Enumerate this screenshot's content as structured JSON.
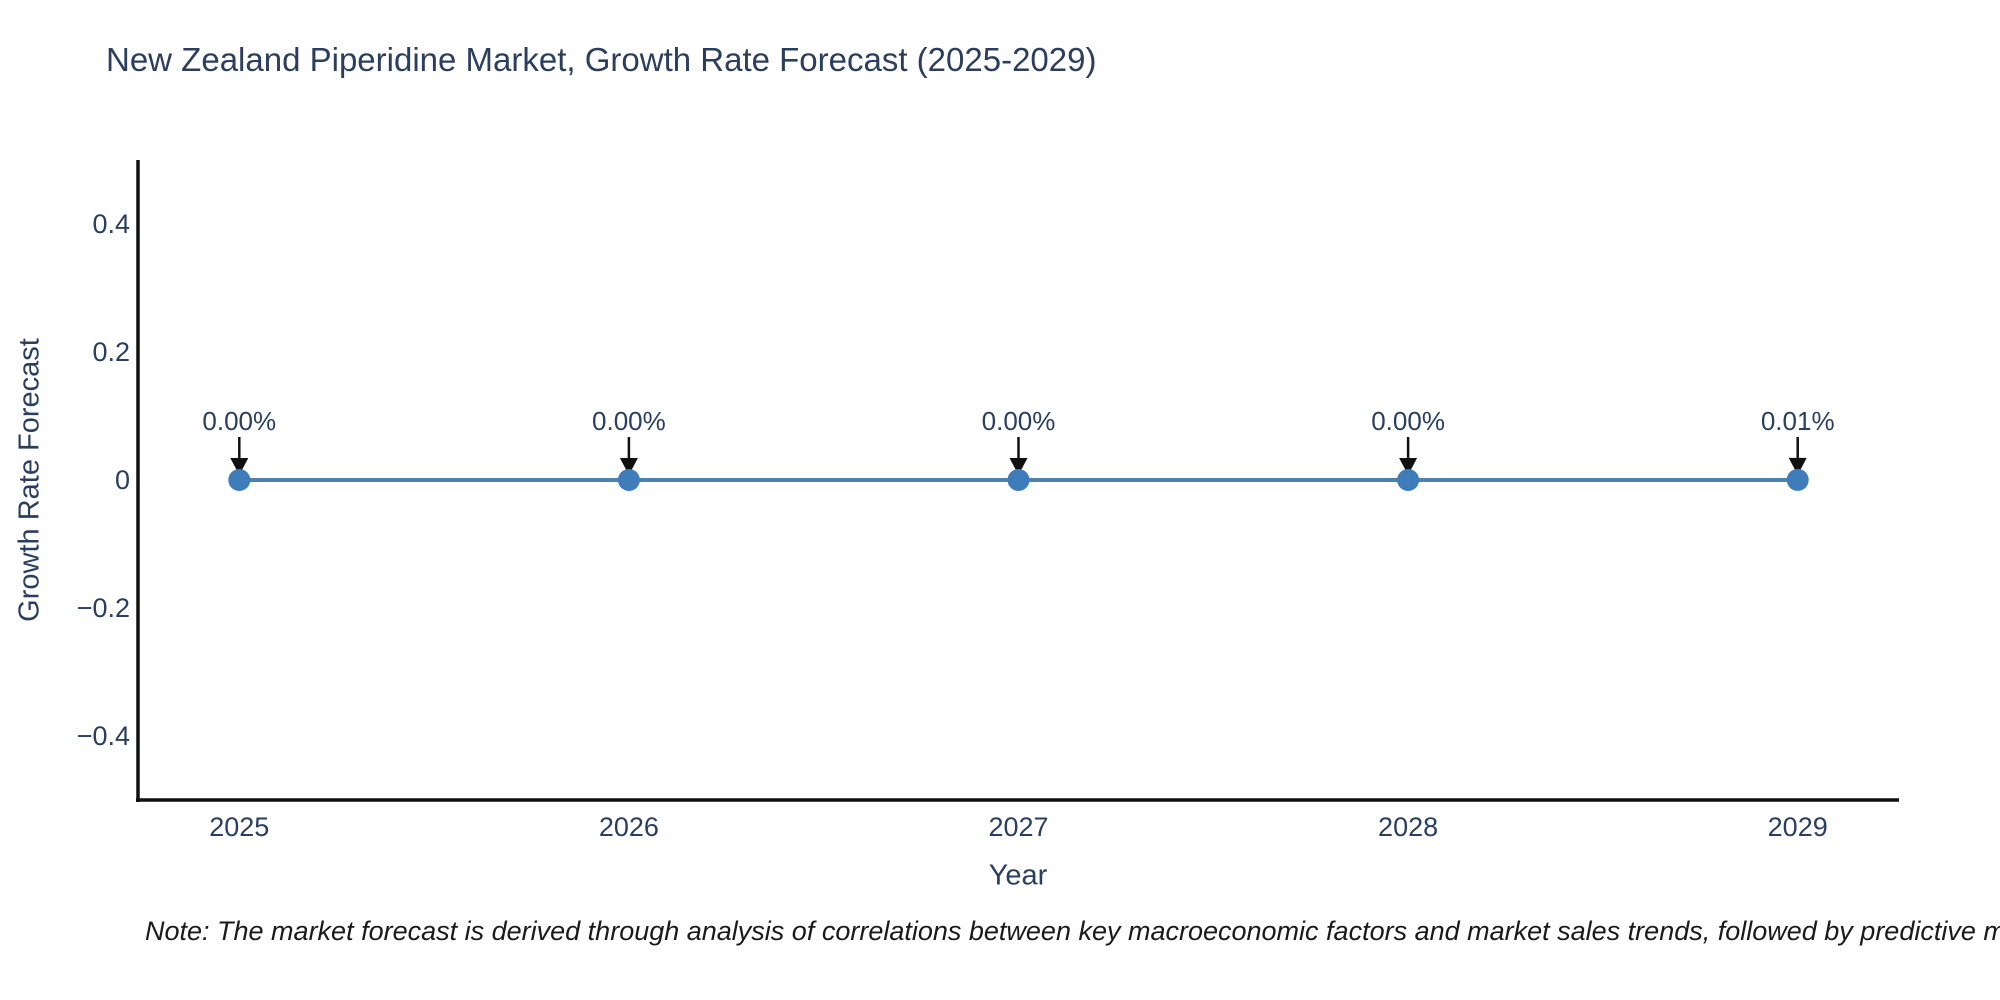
{
  "title": {
    "text": "New Zealand Piperidine Market, Growth Rate Forecast (2025-2029)"
  },
  "note": {
    "text": "Note: The market forecast is derived through analysis of correlations between key macroeconomic factors and market sales trends, followed by predictive modeling to project future sales"
  },
  "chart_data": {
    "type": "line",
    "title": "New Zealand Piperidine Market, Growth Rate Forecast (2025-2029)",
    "xlabel": "Year",
    "ylabel": "Growth Rate Forecast",
    "x": [
      2025,
      2026,
      2027,
      2028,
      2029
    ],
    "x_tick_labels": [
      "2025",
      "2026",
      "2027",
      "2028",
      "2029"
    ],
    "y_ticks": [
      0.4,
      0.2,
      0,
      -0.2,
      -0.4
    ],
    "y_tick_labels": [
      "0.4",
      "0.2",
      "0",
      "−0.2",
      "−0.4"
    ],
    "series": [
      {
        "name": "Growth Rate Forecast",
        "values_percent": [
          0.0,
          0.0,
          0.0,
          0.0,
          0.01
        ],
        "labels": [
          "0.00%",
          "0.00%",
          "0.00%",
          "0.00%",
          "0.01%"
        ]
      }
    ],
    "ylim": [
      -0.5,
      0.5
    ],
    "xlim": [
      2024.74,
      2029.26
    ],
    "grid": false,
    "legend": "none",
    "colors": {
      "line": "#4d81ae",
      "marker": "#3e7cba",
      "arrow": "#111111",
      "axis": "#111111",
      "text": "#2a3f5f"
    }
  }
}
